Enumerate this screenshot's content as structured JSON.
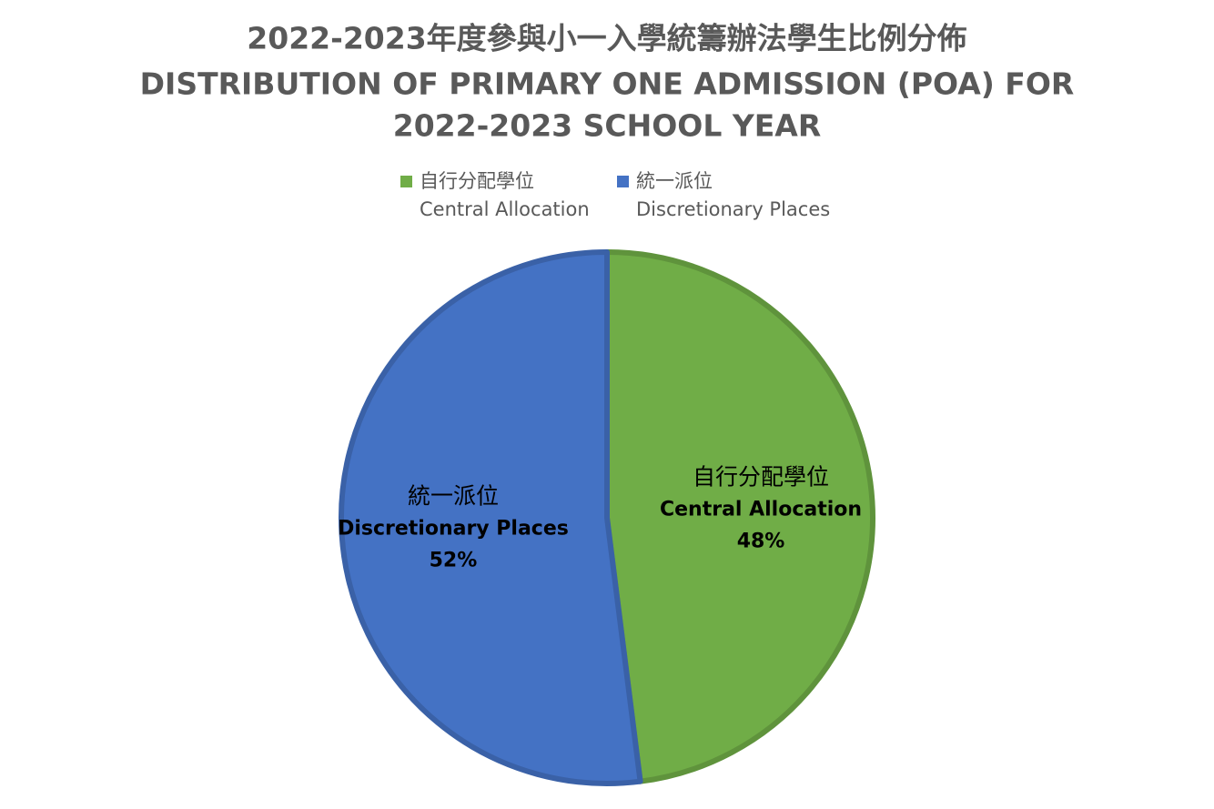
{
  "chart_data": {
    "type": "pie",
    "title": "2022-2023年度參與小一入學統籌辦法學生比例分佈",
    "subtitle": [
      "DISTRIBUTION OF PRIMARY ONE ADMISSION (POA) FOR",
      "2022-2023 SCHOOL YEAR"
    ],
    "categories": [
      {
        "zh": "自行分配學位",
        "en": "Central Allocation"
      },
      {
        "zh": "統一派位",
        "en": "Discretionary Places"
      }
    ],
    "values": [
      48,
      52
    ],
    "value_labels": [
      "48%",
      "52%"
    ],
    "colors": [
      "#70ad47",
      "#4472c4"
    ],
    "legend": "top"
  }
}
